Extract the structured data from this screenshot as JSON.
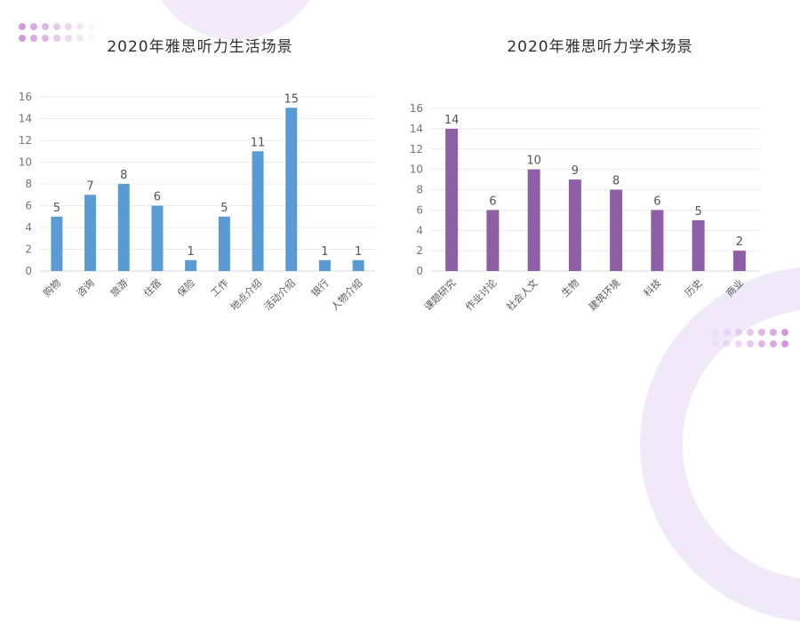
{
  "page": {
    "background": "#ffffff"
  },
  "decor": {
    "dot_grid": {
      "rows": 2,
      "cols": 7,
      "color": "#c87fd4"
    },
    "blob_color": "#f3ebfa"
  },
  "chart_data": [
    {
      "type": "bar",
      "title": "2020年雅思听力生活场景",
      "categories": [
        "购物",
        "咨询",
        "旅游",
        "住宿",
        "保险",
        "工作",
        "地点介绍",
        "活动介绍",
        "银行",
        "人物介绍"
      ],
      "values": [
        5,
        7,
        8,
        6,
        1,
        5,
        11,
        15,
        1,
        1
      ],
      "bar_color": "#5b9bd5",
      "value_label_color": "#555555",
      "tick_label_color": "#757575",
      "category_label_color": "#595959",
      "grid_color": "#ebebeb",
      "baseline_color": "#d9d9d9",
      "xlabel": "",
      "ylabel": "",
      "ylim": [
        0,
        16
      ],
      "ytick_step": 2,
      "grid": true,
      "legend": false
    },
    {
      "type": "bar",
      "title": "2020年雅思听力学术场景",
      "categories": [
        "课题研究",
        "作业讨论",
        "社会人文",
        "生物",
        "建筑环境",
        "科技",
        "历史",
        "商业"
      ],
      "values": [
        14,
        6,
        10,
        9,
        8,
        6,
        5,
        2
      ],
      "bar_color": "#8e5fa5",
      "value_label_color": "#555555",
      "tick_label_color": "#757575",
      "category_label_color": "#595959",
      "grid_color": "#ebebeb",
      "baseline_color": "#d9d9d9",
      "xlabel": "",
      "ylabel": "",
      "ylim": [
        0,
        16
      ],
      "ytick_step": 2,
      "grid": true,
      "legend": false
    }
  ]
}
